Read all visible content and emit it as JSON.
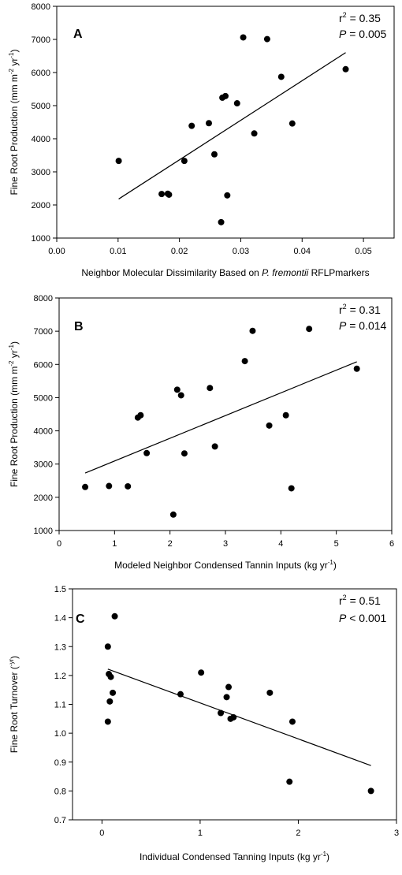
{
  "chart_data": [
    {
      "type": "scatter",
      "panel_label": "A",
      "xlabel": {
        "pre": "Neighbor Molecular Dissimilarity Based on ",
        "italic": "P. fremontii",
        "post": " RFLPmarkers"
      },
      "ylabel": {
        "pre": "Fine Root Production (mm m",
        "sup1": "-2",
        "mid": " yr",
        "sup2": "-1",
        "post": ")"
      },
      "xlim": [
        0.0,
        0.055
      ],
      "ylim": [
        1000,
        8000
      ],
      "xticks": [
        "0.00",
        "0.01",
        "0.02",
        "0.03",
        "0.04",
        "0.05"
      ],
      "xtick_values": [
        0.0,
        0.01,
        0.02,
        0.03,
        0.04,
        0.05
      ],
      "yticks": [
        "1000",
        "2000",
        "3000",
        "4000",
        "5000",
        "6000",
        "7000",
        "8000"
      ],
      "ytick_values": [
        1000,
        2000,
        3000,
        4000,
        5000,
        6000,
        7000,
        8000
      ],
      "grid": false,
      "points": [
        {
          "x": 0.0101,
          "y": 3330
        },
        {
          "x": 0.0171,
          "y": 2330
        },
        {
          "x": 0.0181,
          "y": 2340
        },
        {
          "x": 0.0183,
          "y": 2310
        },
        {
          "x": 0.0208,
          "y": 3330
        },
        {
          "x": 0.022,
          "y": 4390
        },
        {
          "x": 0.0248,
          "y": 4470
        },
        {
          "x": 0.0257,
          "y": 3530
        },
        {
          "x": 0.0268,
          "y": 1480
        },
        {
          "x": 0.027,
          "y": 5240
        },
        {
          "x": 0.0275,
          "y": 5290
        },
        {
          "x": 0.0278,
          "y": 2290
        },
        {
          "x": 0.0294,
          "y": 5070
        },
        {
          "x": 0.0304,
          "y": 7060
        },
        {
          "x": 0.0322,
          "y": 4160
        },
        {
          "x": 0.0343,
          "y": 7010
        },
        {
          "x": 0.0366,
          "y": 5870
        },
        {
          "x": 0.0384,
          "y": 4460
        },
        {
          "x": 0.0471,
          "y": 6100
        }
      ],
      "fit_line": [
        {
          "x": 0.0101,
          "y": 2180
        },
        {
          "x": 0.0471,
          "y": 6600
        }
      ],
      "stats": {
        "r2_base": "r",
        "r2_sup": "2",
        "r2_value": " = 0.35",
        "p_label": "P",
        "p_value": " = 0.005"
      }
    },
    {
      "type": "scatter",
      "panel_label": "B",
      "xlabel": {
        "pre": "Modeled Neighbor Condensed Tannin Inputs (kg yr",
        "sup": "-1",
        "post": ")"
      },
      "ylabel": {
        "pre": "Fine Root Production (mm m",
        "sup1": "-2",
        "mid": " yr",
        "sup2": "-1",
        "post": ")"
      },
      "xlim": [
        0,
        6
      ],
      "ylim": [
        1000,
        8000
      ],
      "xticks": [
        "0",
        "1",
        "2",
        "3",
        "4",
        "5",
        "6"
      ],
      "xtick_values": [
        0,
        1,
        2,
        3,
        4,
        5,
        6
      ],
      "yticks": [
        "1000",
        "2000",
        "3000",
        "4000",
        "5000",
        "6000",
        "7000",
        "8000"
      ],
      "ytick_values": [
        1000,
        2000,
        3000,
        4000,
        5000,
        6000,
        7000,
        8000
      ],
      "grid": false,
      "points": [
        {
          "x": 0.47,
          "y": 2310
        },
        {
          "x": 0.9,
          "y": 2340
        },
        {
          "x": 1.24,
          "y": 2330
        },
        {
          "x": 1.42,
          "y": 4400
        },
        {
          "x": 1.47,
          "y": 4470
        },
        {
          "x": 1.58,
          "y": 3330
        },
        {
          "x": 2.06,
          "y": 1480
        },
        {
          "x": 2.13,
          "y": 5240
        },
        {
          "x": 2.2,
          "y": 5070
        },
        {
          "x": 2.26,
          "y": 3320
        },
        {
          "x": 2.72,
          "y": 5290
        },
        {
          "x": 2.81,
          "y": 3530
        },
        {
          "x": 3.35,
          "y": 6100
        },
        {
          "x": 3.49,
          "y": 7010
        },
        {
          "x": 3.79,
          "y": 4160
        },
        {
          "x": 4.09,
          "y": 4470
        },
        {
          "x": 4.19,
          "y": 2270
        },
        {
          "x": 4.51,
          "y": 7070
        },
        {
          "x": 5.37,
          "y": 5870
        }
      ],
      "fit_line": [
        {
          "x": 0.47,
          "y": 2730
        },
        {
          "x": 5.37,
          "y": 6080
        }
      ],
      "stats": {
        "r2_base": "r",
        "r2_sup": "2",
        "r2_value": " = 0.31",
        "p_label": "P",
        "p_value": " = 0.014"
      }
    },
    {
      "type": "scatter",
      "panel_label": "C",
      "xlabel": {
        "pre": "Individual Condensed Tanning Inputs (kg yr",
        "sup": "-1",
        "post": ")"
      },
      "ylabel": {
        "pre": "Fine Root Turnover (",
        "sup": "-yr",
        "post": ")"
      },
      "xlim": [
        -0.3,
        3.0
      ],
      "ylim": [
        0.7,
        1.5
      ],
      "xticks": [
        "0",
        "1",
        "2",
        "3"
      ],
      "xtick_values": [
        0,
        1,
        2,
        3
      ],
      "yticks": [
        "0.7",
        "0.8",
        "0.9",
        "1.0",
        "1.1",
        "1.2",
        "1.3",
        "1.4",
        "1.5"
      ],
      "ytick_values": [
        0.7,
        0.8,
        0.9,
        1.0,
        1.1,
        1.2,
        1.3,
        1.4,
        1.5
      ],
      "grid": false,
      "points": [
        {
          "x": 0.06,
          "y": 1.04
        },
        {
          "x": 0.06,
          "y": 1.3
        },
        {
          "x": 0.07,
          "y": 1.205
        },
        {
          "x": 0.08,
          "y": 1.11
        },
        {
          "x": 0.09,
          "y": 1.195
        },
        {
          "x": 0.11,
          "y": 1.14
        },
        {
          "x": 0.13,
          "y": 1.405
        },
        {
          "x": 0.8,
          "y": 1.135
        },
        {
          "x": 1.01,
          "y": 1.21
        },
        {
          "x": 1.21,
          "y": 1.07
        },
        {
          "x": 1.27,
          "y": 1.125
        },
        {
          "x": 1.29,
          "y": 1.16
        },
        {
          "x": 1.31,
          "y": 1.05
        },
        {
          "x": 1.34,
          "y": 1.055
        },
        {
          "x": 1.71,
          "y": 1.14
        },
        {
          "x": 1.91,
          "y": 0.832
        },
        {
          "x": 1.94,
          "y": 1.04
        },
        {
          "x": 2.74,
          "y": 0.8
        }
      ],
      "fit_line": [
        {
          "x": 0.06,
          "y": 1.222
        },
        {
          "x": 2.74,
          "y": 0.888
        }
      ],
      "stats": {
        "r2_base": "r",
        "r2_sup": "2",
        "r2_value": " = 0.51",
        "p_label": "P",
        "p_value": " < 0.001"
      }
    }
  ]
}
